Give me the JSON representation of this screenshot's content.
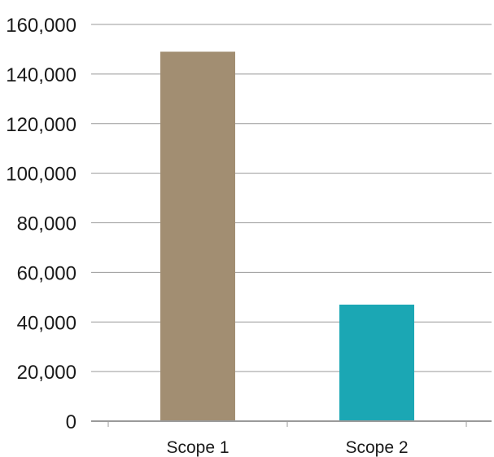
{
  "chart_data": {
    "type": "bar",
    "title": "",
    "xlabel": "",
    "ylabel": "",
    "categories": [
      "Scope 1",
      "Scope 2"
    ],
    "values": [
      149000,
      47000
    ],
    "colors": [
      "#a28e72",
      "#1ba7b4"
    ],
    "ylim": [
      0,
      160000
    ],
    "yticks": [
      0,
      20000,
      40000,
      60000,
      80000,
      100000,
      120000,
      140000,
      160000
    ],
    "ytick_labels": [
      "0",
      "20,000",
      "40,000",
      "60,000",
      "80,000",
      "100,000",
      "120,000",
      "140,000",
      "160,000"
    ],
    "grid": true,
    "legend": "none"
  }
}
